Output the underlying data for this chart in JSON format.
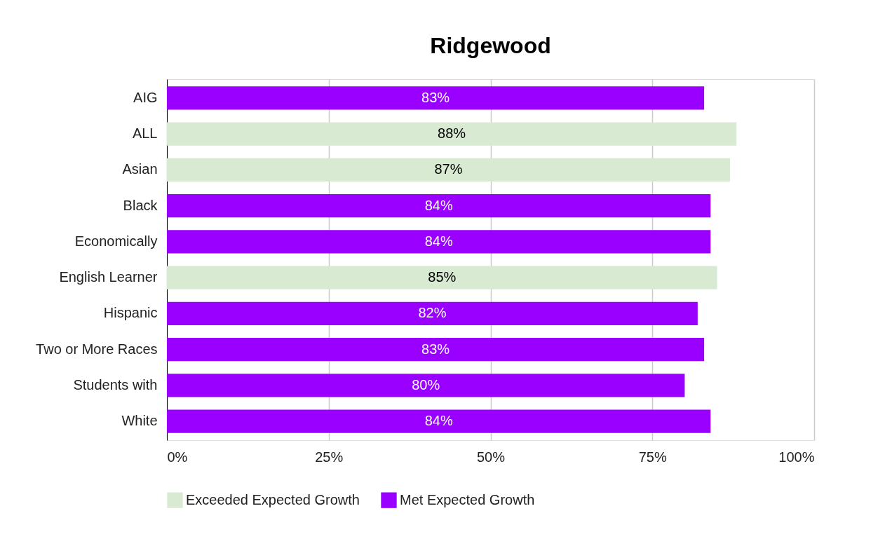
{
  "chart_data": {
    "type": "bar",
    "orientation": "horizontal",
    "title": "Ridgewood",
    "categories": [
      "AIG",
      "ALL",
      "Asian",
      "Black",
      "Economically",
      "English Learner",
      "Hispanic",
      "Two or More Races",
      "Students with",
      "White"
    ],
    "series": [
      {
        "name": "Exceeded Expected Growth",
        "color": "#d9ead3",
        "values": [
          null,
          88,
          87,
          null,
          null,
          85,
          null,
          null,
          null,
          null
        ],
        "value_labels": [
          null,
          "88%",
          "87%",
          null,
          null,
          "85%",
          null,
          null,
          null,
          null
        ]
      },
      {
        "name": "Met Expected Growth",
        "color": "#9900ff",
        "values": [
          83,
          null,
          null,
          84,
          84,
          null,
          82,
          83,
          80,
          84
        ],
        "value_labels": [
          "83%",
          null,
          null,
          "84%",
          "84%",
          null,
          "82%",
          "83%",
          "80%",
          "84%"
        ]
      }
    ],
    "xlim": [
      0,
      100
    ],
    "xticks": [
      {
        "value": 0,
        "label": "0%"
      },
      {
        "value": 25,
        "label": "25%"
      },
      {
        "value": 50,
        "label": "50%"
      },
      {
        "value": 75,
        "label": "75%"
      },
      {
        "value": 100,
        "label": "100%"
      }
    ],
    "grid": "x",
    "legend": "bottom"
  }
}
